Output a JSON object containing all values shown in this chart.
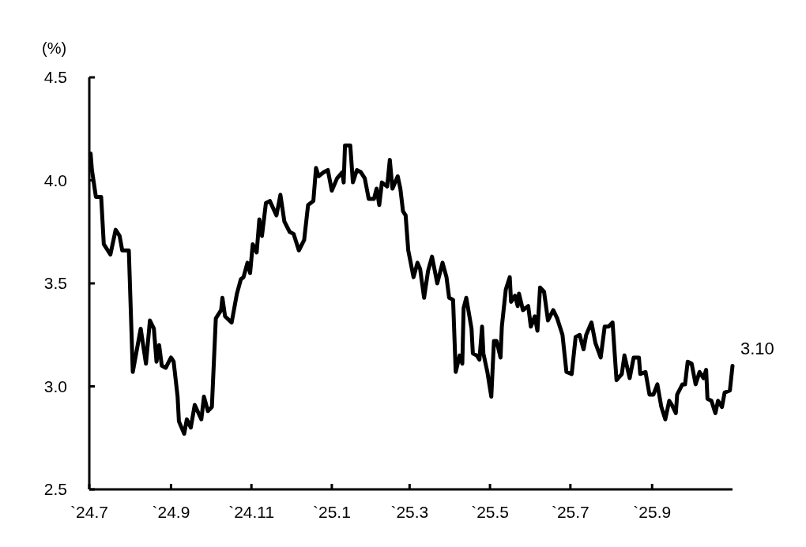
{
  "chart_data": {
    "type": "line",
    "ylabel": "(%)",
    "x": [
      "2024-07-02",
      "2024-07-03",
      "2024-07-06",
      "2024-07-10",
      "2024-07-12",
      "2024-07-17",
      "2024-07-21",
      "2024-07-24",
      "2024-07-26",
      "2024-07-31",
      "2024-08-03",
      "2024-08-09",
      "2024-08-13",
      "2024-08-16",
      "2024-08-19",
      "2024-08-21",
      "2024-08-23",
      "2024-08-25",
      "2024-08-28",
      "2024-09-01",
      "2024-09-03",
      "2024-09-06",
      "2024-09-07",
      "2024-09-11",
      "2024-09-13",
      "2024-09-16",
      "2024-09-19",
      "2024-09-24",
      "2024-09-26",
      "2024-09-29",
      "2024-10-02",
      "2024-10-05",
      "2024-10-09",
      "2024-10-10",
      "2024-10-12",
      "2024-10-17",
      "2024-10-21",
      "2024-10-24",
      "2024-10-26",
      "2024-10-29",
      "2024-10-31",
      "2024-11-02",
      "2024-11-05",
      "2024-11-07",
      "2024-11-09",
      "2024-11-12",
      "2024-11-15",
      "2024-11-20",
      "2024-11-23",
      "2024-11-26",
      "2024-11-30",
      "2024-12-03",
      "2024-12-07",
      "2024-12-11",
      "2024-12-14",
      "2024-12-18",
      "2024-12-20",
      "2024-12-22",
      "2024-12-26",
      "2024-12-29",
      "2025-01-01",
      "2025-01-05",
      "2025-01-09",
      "2025-01-10",
      "2025-01-11",
      "2025-01-15",
      "2025-01-17",
      "2025-01-20",
      "2025-01-23",
      "2025-01-26",
      "2025-01-29",
      "2025-02-02",
      "2025-02-04",
      "2025-02-06",
      "2025-02-08",
      "2025-02-12",
      "2025-02-14",
      "2025-02-16",
      "2025-02-20",
      "2025-02-22",
      "2025-02-24",
      "2025-02-26",
      "2025-02-28",
      "2025-03-04",
      "2025-03-07",
      "2025-03-09",
      "2025-03-12",
      "2025-03-15",
      "2025-03-18",
      "2025-03-22",
      "2025-03-26",
      "2025-03-29",
      "2025-03-31",
      "2025-04-03",
      "2025-04-05",
      "2025-04-08",
      "2025-04-10",
      "2025-04-11",
      "2025-04-13",
      "2025-04-17",
      "2025-04-18",
      "2025-04-21",
      "2025-04-23",
      "2025-04-25",
      "2025-04-26",
      "2025-04-29",
      "2025-05-02",
      "2025-05-04",
      "2025-05-06",
      "2025-05-09",
      "2025-05-10",
      "2025-05-13",
      "2025-05-16",
      "2025-05-17",
      "2025-05-20",
      "2025-05-22",
      "2025-05-23",
      "2025-05-26",
      "2025-05-30",
      "2025-06-01",
      "2025-06-04",
      "2025-06-06",
      "2025-06-08",
      "2025-06-11",
      "2025-06-14",
      "2025-06-18",
      "2025-06-21",
      "2025-06-25",
      "2025-06-28",
      "2025-07-02",
      "2025-07-05",
      "2025-07-08",
      "2025-07-11",
      "2025-07-13",
      "2025-07-17",
      "2025-07-20",
      "2025-07-24",
      "2025-07-27",
      "2025-07-30",
      "2025-08-02",
      "2025-08-05",
      "2025-08-09",
      "2025-08-11",
      "2025-08-15",
      "2025-08-18",
      "2025-08-22",
      "2025-08-23",
      "2025-08-27",
      "2025-08-30",
      "2025-09-02",
      "2025-09-05",
      "2025-09-08",
      "2025-09-11",
      "2025-09-14",
      "2025-09-16",
      "2025-09-19",
      "2025-09-20",
      "2025-09-24",
      "2025-09-26",
      "2025-09-28",
      "2025-10-01",
      "2025-10-04",
      "2025-10-07",
      "2025-10-10",
      "2025-10-12",
      "2025-10-13",
      "2025-10-16",
      "2025-10-19",
      "2025-10-21",
      "2025-10-24",
      "2025-10-26",
      "2025-10-30",
      "2025-11-01"
    ],
    "series": [
      {
        "color": "#000000",
        "values": [
          4.13,
          4.05,
          3.92,
          3.92,
          3.69,
          3.64,
          3.76,
          3.73,
          3.66,
          3.66,
          3.07,
          3.28,
          3.11,
          3.32,
          3.28,
          3.12,
          3.2,
          3.1,
          3.09,
          3.14,
          3.12,
          2.95,
          2.83,
          2.77,
          2.84,
          2.8,
          2.91,
          2.84,
          2.95,
          2.88,
          2.9,
          3.33,
          3.37,
          3.43,
          3.34,
          3.31,
          3.45,
          3.52,
          3.53,
          3.6,
          3.55,
          3.69,
          3.65,
          3.81,
          3.73,
          3.89,
          3.9,
          3.83,
          3.93,
          3.8,
          3.75,
          3.74,
          3.66,
          3.71,
          3.88,
          3.9,
          4.06,
          4.02,
          4.04,
          4.05,
          3.95,
          4.01,
          4.04,
          3.99,
          4.17,
          4.17,
          3.99,
          4.05,
          4.04,
          4.01,
          3.91,
          3.91,
          3.96,
          3.88,
          3.99,
          3.97,
          4.1,
          3.96,
          4.02,
          3.96,
          3.85,
          3.83,
          3.66,
          3.53,
          3.6,
          3.57,
          3.43,
          3.56,
          3.63,
          3.5,
          3.6,
          3.53,
          3.43,
          3.42,
          3.07,
          3.15,
          3.11,
          3.38,
          3.43,
          3.28,
          3.16,
          3.15,
          3.13,
          3.29,
          3.16,
          3.07,
          2.95,
          3.22,
          3.22,
          3.14,
          3.29,
          3.47,
          3.53,
          3.41,
          3.44,
          3.39,
          3.45,
          3.37,
          3.39,
          3.29,
          3.34,
          3.27,
          3.48,
          3.46,
          3.32,
          3.37,
          3.33,
          3.25,
          3.07,
          3.06,
          3.24,
          3.25,
          3.18,
          3.25,
          3.31,
          3.21,
          3.14,
          3.29,
          3.29,
          3.31,
          3.03,
          3.06,
          3.15,
          3.04,
          3.14,
          3.14,
          3.06,
          3.07,
          2.96,
          2.96,
          3.01,
          2.9,
          2.84,
          2.93,
          2.91,
          2.87,
          2.96,
          3.01,
          3.01,
          3.12,
          3.11,
          3.01,
          3.07,
          3.04,
          3.08,
          2.94,
          2.93,
          2.87,
          2.93,
          2.9,
          2.97,
          2.98,
          3.1
        ]
      }
    ],
    "xlim": [
      "2024-07-01",
      "2025-11-01"
    ],
    "xticks": [
      {
        "value": "2024-07",
        "label": "`24.7"
      },
      {
        "value": "2024-09",
        "label": "`24.9"
      },
      {
        "value": "2024-11",
        "label": "`24.11"
      },
      {
        "value": "2025-01",
        "label": "`25.1"
      },
      {
        "value": "2025-03",
        "label": "`25.3"
      },
      {
        "value": "2025-05",
        "label": "`25.5"
      },
      {
        "value": "2025-07",
        "label": "`25.7"
      },
      {
        "value": "2025-09",
        "label": "`25.9"
      }
    ],
    "ylim": [
      2.5,
      4.5
    ],
    "yticks": [
      {
        "value": 2.5,
        "label": "2.5"
      },
      {
        "value": 3,
        "label": "3.0"
      },
      {
        "value": 3.5,
        "label": "3.5"
      },
      {
        "value": 4,
        "label": "4.0"
      },
      {
        "value": 4.5,
        "label": "4.5"
      }
    ],
    "annotations": [
      {
        "text": "3.10",
        "x": "2025-11-01",
        "y": 3.1
      }
    ],
    "line_style": "solid",
    "marker": "none"
  }
}
